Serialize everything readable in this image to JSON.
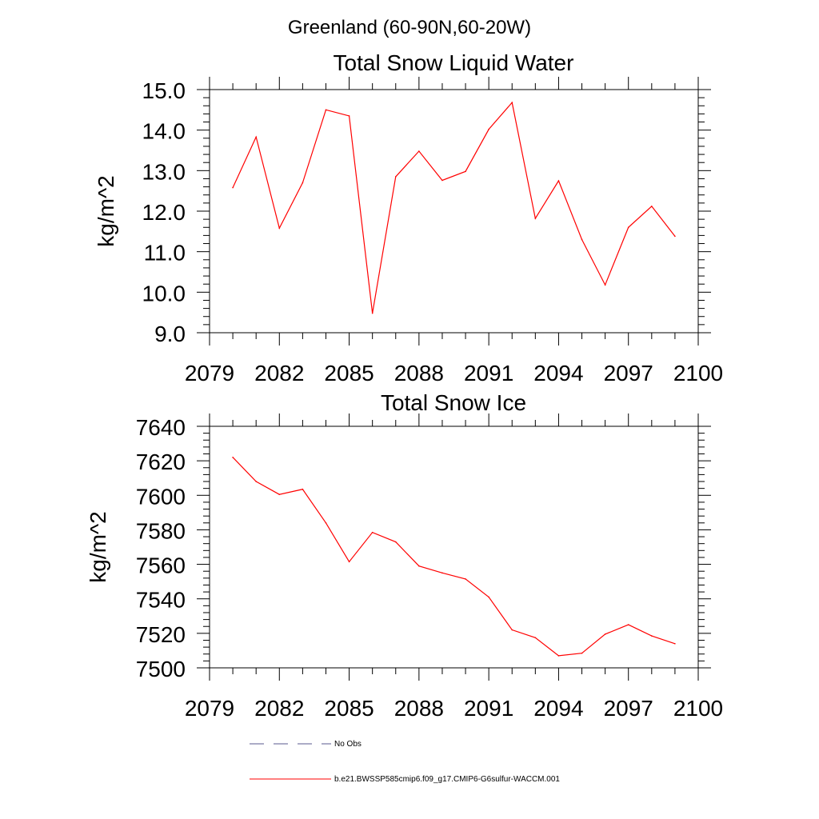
{
  "suptitle": "Greenland (60-90N,60-20W)",
  "colors": {
    "series": "#ff0000",
    "axis": "#000000",
    "no_obs": "#5a5a8c"
  },
  "chart_data": [
    {
      "type": "line",
      "title": "Total Snow Liquid Water",
      "xlabel": "",
      "ylabel": "kg/m^2",
      "xlim": [
        2079,
        2100
      ],
      "ylim": [
        9.0,
        15.0
      ],
      "xticks": [
        2079,
        2082,
        2085,
        2088,
        2091,
        2094,
        2097,
        2100
      ],
      "yticks": [
        "9.0",
        "10.0",
        "11.0",
        "12.0",
        "13.0",
        "14.0",
        "15.0"
      ],
      "x": [
        2080,
        2081,
        2082,
        2083,
        2084,
        2085,
        2086,
        2087,
        2088,
        2089,
        2090,
        2091,
        2092,
        2093,
        2094,
        2095,
        2096,
        2097,
        2098,
        2099
      ],
      "series": [
        {
          "values": [
            12.58,
            13.83,
            11.58,
            12.7,
            14.5,
            14.35,
            9.48,
            12.85,
            13.48,
            12.76,
            12.98,
            14.02,
            14.68,
            11.82,
            12.75,
            11.3,
            10.18,
            11.6,
            12.12,
            11.38
          ]
        }
      ]
    },
    {
      "type": "line",
      "title": "Total Snow Ice",
      "xlabel": "",
      "ylabel": "kg/m^2",
      "xlim": [
        2079,
        2100
      ],
      "ylim": [
        7500,
        7640
      ],
      "xticks": [
        2079,
        2082,
        2085,
        2088,
        2091,
        2094,
        2097,
        2100
      ],
      "yticks": [
        "7500",
        "7520",
        "7540",
        "7560",
        "7580",
        "7600",
        "7620",
        "7640"
      ],
      "x": [
        2080,
        2081,
        2082,
        2083,
        2084,
        2085,
        2086,
        2087,
        2088,
        2089,
        2090,
        2091,
        2092,
        2093,
        2094,
        2095,
        2096,
        2097,
        2098,
        2099
      ],
      "series": [
        {
          "values": [
            7622,
            7608,
            7600.5,
            7603.5,
            7584,
            7561.5,
            7578.5,
            7573,
            7559,
            7555,
            7551.5,
            7541,
            7522,
            7517.5,
            7507,
            7508.5,
            7519.5,
            7525,
            7518.5,
            7514
          ]
        }
      ]
    }
  ],
  "legend": [
    {
      "label": "No Obs",
      "style": "dashed"
    },
    {
      "label": "b.e21.BWSSP585cmip6.f09_g17.CMIP6-G6sulfur-WACCM.001",
      "style": "solid"
    }
  ]
}
